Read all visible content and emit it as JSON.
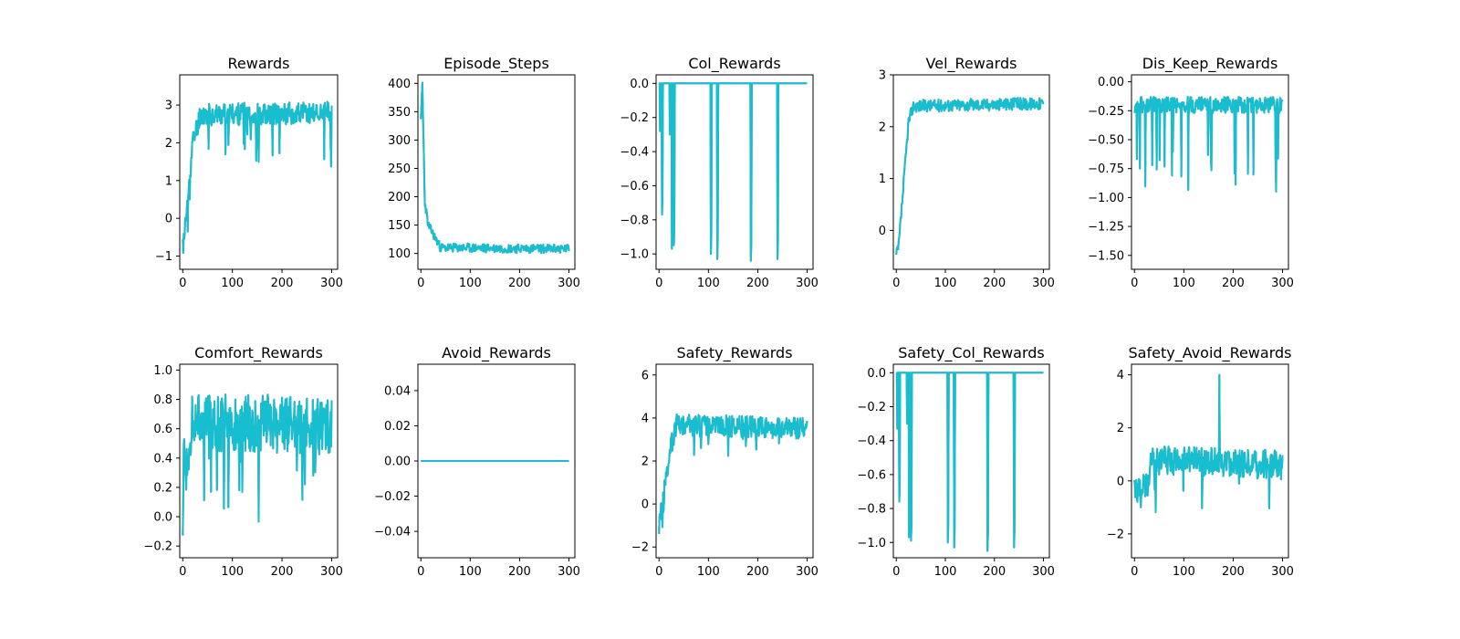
{
  "figure": {
    "background": "#ffffff"
  },
  "colors": {
    "series": "#17becf",
    "series_under": "#7f7f7f"
  },
  "chart_data": [
    {
      "type": "line",
      "title": "Rewards",
      "xlabel": "",
      "ylabel": "",
      "xlim": [
        -6,
        312
      ],
      "ylim": [
        -1.35,
        3.8
      ],
      "xticks": [
        0,
        100,
        200,
        300
      ],
      "xtick_labels": [
        "0",
        "100",
        "200",
        "300"
      ],
      "yticks": [
        -1,
        0,
        1,
        2,
        3
      ],
      "ytick_labels": [
        "−1",
        "0",
        "1",
        "2",
        "3"
      ],
      "series": [
        {
          "name": "Rewards",
          "seed": 11,
          "n": 300,
          "trend": [
            [
              0,
              -0.8
            ],
            [
              10,
              0.4
            ],
            [
              20,
              2.0
            ],
            [
              35,
              2.75
            ],
            [
              300,
              2.8
            ]
          ],
          "noise": 0.3,
          "spikes": {
            "rate": 0.06,
            "amp": -1.4
          },
          "min": -1.2,
          "max": 3.6
        }
      ]
    },
    {
      "type": "line",
      "title": "Episode_Steps",
      "xlabel": "",
      "ylabel": "",
      "xlim": [
        -6,
        312
      ],
      "ylim": [
        72,
        415
      ],
      "xticks": [
        0,
        100,
        200,
        300
      ],
      "xtick_labels": [
        "0",
        "100",
        "200",
        "300"
      ],
      "yticks": [
        100,
        150,
        200,
        250,
        300,
        350,
        400
      ],
      "ytick_labels": [
        "100",
        "150",
        "200",
        "250",
        "300",
        "350",
        "400"
      ],
      "series": [
        {
          "name": "Episode_Steps",
          "seed": 23,
          "n": 300,
          "trend": [
            [
              0,
              330
            ],
            [
              3,
              400
            ],
            [
              8,
              190
            ],
            [
              15,
              150
            ],
            [
              40,
              110
            ],
            [
              300,
              108
            ]
          ],
          "noise": 8,
          "spikes": {
            "rate": 0,
            "amp": 0
          },
          "min": 85,
          "max": 402
        }
      ]
    },
    {
      "type": "line",
      "title": "Col_Rewards",
      "xlabel": "",
      "ylabel": "",
      "xlim": [
        -6,
        312
      ],
      "ylim": [
        -1.09,
        0.05
      ],
      "xticks": [
        0,
        100,
        200,
        300
      ],
      "xtick_labels": [
        "0",
        "100",
        "200",
        "300"
      ],
      "yticks": [
        -1.0,
        -0.8,
        -0.6,
        -0.4,
        -0.2,
        0.0
      ],
      "ytick_labels": [
        "−1.0",
        "−0.8",
        "−0.6",
        "−0.4",
        "−0.2",
        "0.0"
      ],
      "series": [
        {
          "name": "Col_Rewards",
          "seed": 0,
          "n": 300,
          "trend": [
            [
              0,
              0
            ],
            [
              300,
              0
            ]
          ],
          "noise": 0,
          "drops": [
            [
              2,
              -0.28
            ],
            [
              6,
              -0.77
            ],
            [
              22,
              -0.3
            ],
            [
              26,
              -0.97
            ],
            [
              30,
              -0.95
            ],
            [
              105,
              -1.0
            ],
            [
              118,
              -1.03
            ],
            [
              186,
              -1.04
            ],
            [
              240,
              -1.03
            ]
          ],
          "min": -1.05,
          "max": 0
        }
      ]
    },
    {
      "type": "line",
      "title": "Vel_Rewards",
      "xlabel": "",
      "ylabel": "",
      "xlim": [
        -6,
        312
      ],
      "ylim": [
        -0.75,
        3.0
      ],
      "xticks": [
        0,
        100,
        200,
        300
      ],
      "xtick_labels": [
        "0",
        "100",
        "200",
        "300"
      ],
      "yticks": [
        0,
        1,
        2,
        3
      ],
      "ytick_labels": [
        "0",
        "1",
        "2",
        "3"
      ],
      "series": [
        {
          "name": "Vel_Rewards",
          "seed": 37,
          "n": 300,
          "trend": [
            [
              0,
              -0.5
            ],
            [
              5,
              -0.3
            ],
            [
              15,
              0.9
            ],
            [
              25,
              2.1
            ],
            [
              35,
              2.4
            ],
            [
              300,
              2.45
            ]
          ],
          "noise": 0.12,
          "spikes": {
            "rate": 0,
            "amp": 0
          },
          "min": -0.6,
          "max": 2.9
        }
      ]
    },
    {
      "type": "line",
      "title": "Dis_Keep_Rewards",
      "xlabel": "",
      "ylabel": "",
      "xlim": [
        -6,
        312
      ],
      "ylim": [
        -1.62,
        0.06
      ],
      "xticks": [
        0,
        100,
        200,
        300
      ],
      "xtick_labels": [
        "0",
        "100",
        "200",
        "300"
      ],
      "yticks": [
        -1.5,
        -1.25,
        -1.0,
        -0.75,
        -0.5,
        -0.25,
        0.0
      ],
      "ytick_labels": [
        "−1.50",
        "−1.25",
        "−1.00",
        "−0.75",
        "−0.50",
        "−0.25",
        "0.00"
      ],
      "series": [
        {
          "name": "Dis_Keep_Rewards",
          "seed": 53,
          "n": 300,
          "trend": [
            [
              0,
              -0.2
            ],
            [
              300,
              -0.2
            ]
          ],
          "noise": 0.07,
          "spikes": {
            "rate": 0.07,
            "amp": -0.8
          },
          "min": -1.55,
          "max": -0.02
        }
      ]
    },
    {
      "type": "line",
      "title": "Comfort_Rewards",
      "xlabel": "",
      "ylabel": "",
      "xlim": [
        -6,
        312
      ],
      "ylim": [
        -0.28,
        1.04
      ],
      "xticks": [
        0,
        100,
        200,
        300
      ],
      "xtick_labels": [
        "0",
        "100",
        "200",
        "300"
      ],
      "yticks": [
        -0.2,
        0.0,
        0.2,
        0.4,
        0.6,
        0.8,
        1.0
      ],
      "ytick_labels": [
        "−0.2",
        "0.0",
        "0.2",
        "0.4",
        "0.6",
        "0.8",
        "1.0"
      ],
      "series": [
        {
          "name": "Comfort_Rewards",
          "seed": 71,
          "n": 300,
          "trend": [
            [
              0,
              0.3
            ],
            [
              10,
              0.4
            ],
            [
              20,
              0.65
            ],
            [
              300,
              0.62
            ]
          ],
          "noise": 0.2,
          "spikes": {
            "rate": 0.05,
            "amp": -0.5
          },
          "min": -0.22,
          "max": 0.99
        }
      ]
    },
    {
      "type": "line",
      "title": "Avoid_Rewards",
      "xlabel": "",
      "ylabel": "",
      "xlim": [
        -6,
        312
      ],
      "ylim": [
        -0.055,
        0.055
      ],
      "xticks": [
        0,
        100,
        200,
        300
      ],
      "xtick_labels": [
        "0",
        "100",
        "200",
        "300"
      ],
      "yticks": [
        -0.04,
        -0.02,
        0.0,
        0.02,
        0.04
      ],
      "ytick_labels": [
        "−0.04",
        "−0.02",
        "0.00",
        "0.02",
        "0.04"
      ],
      "series": [
        {
          "name": "Avoid_Rewards",
          "seed": 0,
          "n": 300,
          "trend": [
            [
              0,
              0
            ],
            [
              300,
              0
            ]
          ],
          "noise": 0,
          "min": 0,
          "max": 0
        }
      ]
    },
    {
      "type": "line",
      "title": "Safety_Rewards",
      "xlabel": "",
      "ylabel": "",
      "xlim": [
        -6,
        312
      ],
      "ylim": [
        -2.5,
        6.5
      ],
      "xticks": [
        0,
        100,
        200,
        300
      ],
      "xtick_labels": [
        "0",
        "100",
        "200",
        "300"
      ],
      "yticks": [
        -2,
        0,
        2,
        4,
        6
      ],
      "ytick_labels": [
        "−2",
        "0",
        "2",
        "4",
        "6"
      ],
      "series": [
        {
          "name": "Safety_Rewards",
          "seed": 89,
          "n": 300,
          "trend": [
            [
              0,
              -1.0
            ],
            [
              10,
              0.5
            ],
            [
              20,
              2.2
            ],
            [
              35,
              3.7
            ],
            [
              300,
              3.5
            ]
          ],
          "noise": 0.5,
          "spikes": {
            "rate": 0.03,
            "amp": -1.2
          },
          "min": -2.2,
          "max": 6.1
        }
      ]
    },
    {
      "type": "line",
      "title": "Safety_Col_Rewards",
      "xlabel": "",
      "ylabel": "",
      "xlim": [
        -6,
        312
      ],
      "ylim": [
        -1.09,
        0.05
      ],
      "xticks": [
        0,
        100,
        200,
        300
      ],
      "xtick_labels": [
        "0",
        "100",
        "200",
        "300"
      ],
      "yticks": [
        -1.0,
        -0.8,
        -0.6,
        -0.4,
        -0.2,
        0.0
      ],
      "ytick_labels": [
        "−1.0",
        "−0.8",
        "−0.6",
        "−0.4",
        "−0.2",
        "0.0"
      ],
      "series": [
        {
          "name": "Safety_Col_Rewards",
          "seed": 0,
          "n": 300,
          "trend": [
            [
              0,
              0
            ],
            [
              300,
              0
            ]
          ],
          "noise": 0,
          "drops": [
            [
              2,
              -0.33
            ],
            [
              6,
              -0.76
            ],
            [
              22,
              -0.3
            ],
            [
              26,
              -0.97
            ],
            [
              30,
              -0.99
            ],
            [
              105,
              -1.0
            ],
            [
              118,
              -1.03
            ],
            [
              186,
              -1.05
            ],
            [
              240,
              -1.03
            ]
          ],
          "min": -1.05,
          "max": 0
        }
      ]
    },
    {
      "type": "line",
      "title": "Safety_Avoid_Rewards",
      "xlabel": "",
      "ylabel": "",
      "xlim": [
        -6,
        312
      ],
      "ylim": [
        -2.9,
        4.4
      ],
      "xticks": [
        0,
        100,
        200,
        300
      ],
      "xtick_labels": [
        "0",
        "100",
        "200",
        "300"
      ],
      "yticks": [
        -2,
        0,
        2,
        4
      ],
      "ytick_labels": [
        "−2",
        "0",
        "2",
        "4"
      ],
      "series": [
        {
          "name": "Safety_Avoid_Rewards",
          "seed": 97,
          "n": 300,
          "trend": [
            [
              0,
              -0.3
            ],
            [
              25,
              -0.2
            ],
            [
              35,
              0.8
            ],
            [
              300,
              0.6
            ]
          ],
          "noise": 0.55,
          "spikes": {
            "rate": 0.03,
            "amp": -1.8
          },
          "min": -2.4,
          "max": 4.0,
          "peak": [
            172,
            4.0
          ]
        }
      ]
    }
  ]
}
